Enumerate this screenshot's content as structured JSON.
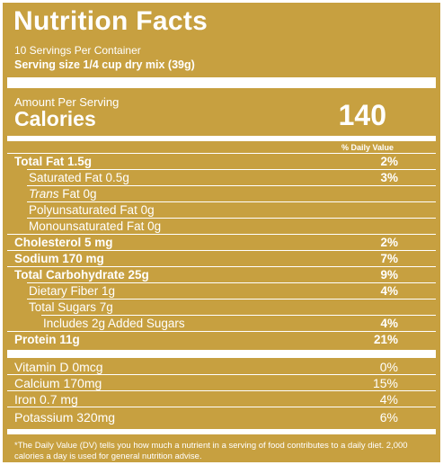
{
  "panel": {
    "title": "Nutrition Facts",
    "servings": "10 Servings Per Container",
    "serving_size": "Serving size 1/4 cup dry mix (39g)",
    "amount_per_serving": "Amount Per Serving",
    "calories_label": "Calories",
    "calories_value": "140",
    "dv_header": "% Daily Value"
  },
  "nutrients": [
    {
      "label": "Total Fat 1.5g",
      "pct": "2%"
    },
    {
      "label": "Saturated Fat 0.5g",
      "pct": "3%"
    },
    {
      "label_italic": "Trans",
      "label": " Fat 0g",
      "pct": ""
    },
    {
      "label": "Polyunsaturated Fat 0g",
      "pct": ""
    },
    {
      "label": "Monounsaturated Fat 0g",
      "pct": ""
    },
    {
      "label": "Cholesterol 5 mg",
      "pct": "2%"
    },
    {
      "label": "Sodium 170 mg",
      "pct": "7%"
    },
    {
      "label": "Total Carbohydrate 25g",
      "pct": "9%"
    },
    {
      "label": "Dietary Fiber 1g",
      "pct": "4%"
    },
    {
      "label": "Total Sugars 7g",
      "pct": ""
    },
    {
      "label": "Includes 2g Added Sugars",
      "pct": "4%"
    },
    {
      "label": "Protein 11g",
      "pct": "21%"
    }
  ],
  "vitamins": [
    {
      "label": "Vitamin D 0mcg",
      "pct": "0%"
    },
    {
      "label": "Calcium 170mg",
      "pct": "15%"
    },
    {
      "label": "Iron 0.7 mg",
      "pct": "4%"
    },
    {
      "label": "Potassium 320mg",
      "pct": "6%"
    }
  ],
  "footnote": "*The Daily Value (DV) tells you how much a nutrient in a serving of food contributes to a daily diet. 2,000 calories a day is used for general nutrition advise.",
  "colors": {
    "background": "#c7a040",
    "text": "#ffffff"
  }
}
